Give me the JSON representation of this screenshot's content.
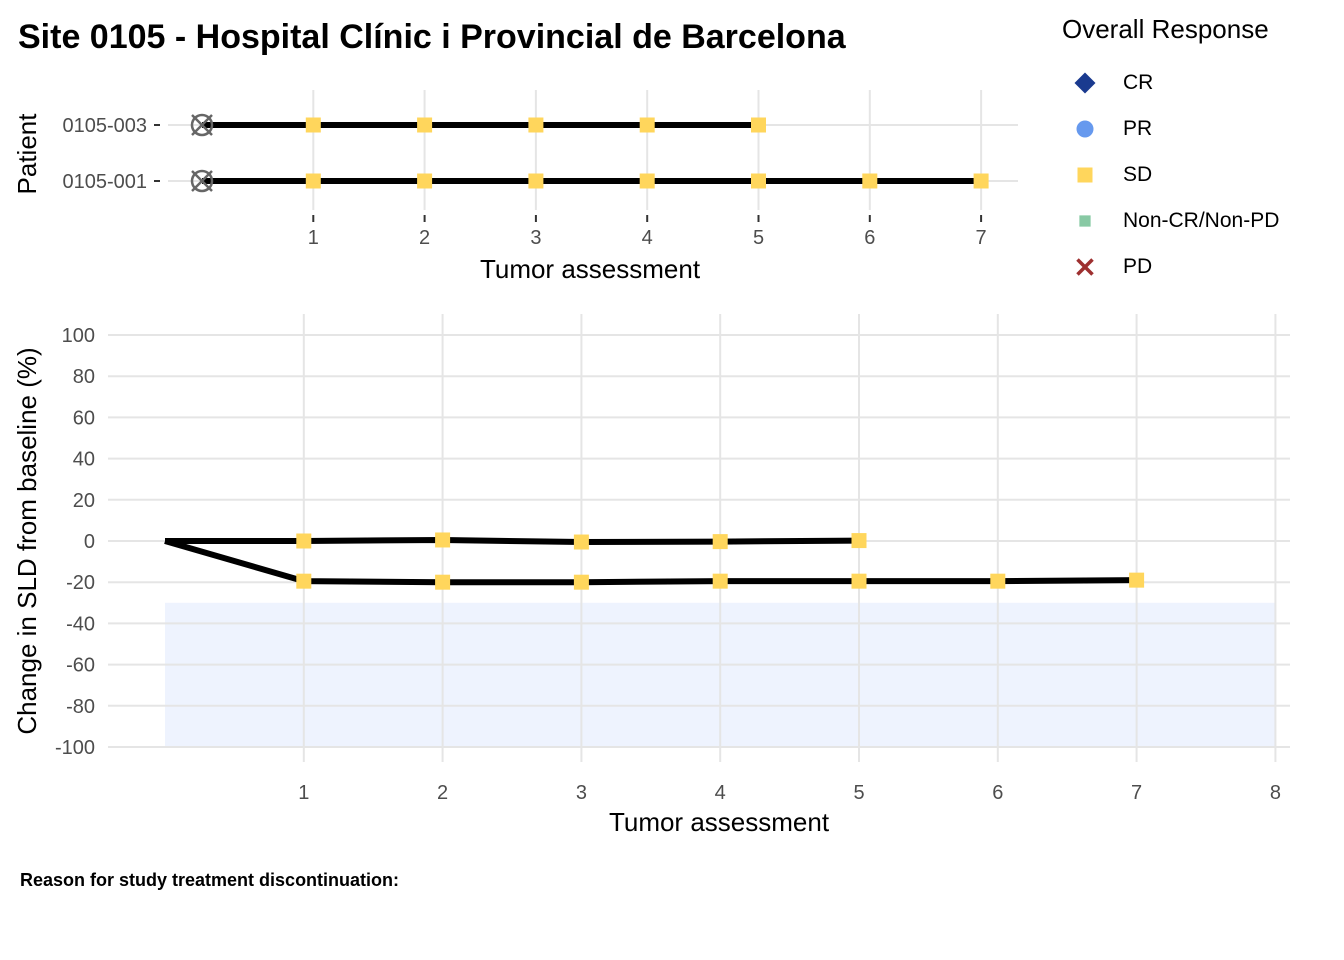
{
  "title": "Site 0105 - Hospital Clínic i Provincial de Barcelona",
  "footnote": "Reason for study treatment discontinuation:",
  "legend": {
    "title": "Overall Response",
    "items": [
      {
        "label": "CR",
        "shape": "diamond",
        "color": "#1A3A8F"
      },
      {
        "label": "PR",
        "shape": "circle",
        "color": "#6699EE"
      },
      {
        "label": "SD",
        "shape": "square",
        "color": "#FFD65C"
      },
      {
        "label": "Non-CR/Non-PD",
        "shape": "square-small",
        "color": "#88C9A4"
      },
      {
        "label": "PD",
        "shape": "cross",
        "color": "#9E3030"
      }
    ]
  },
  "chart_data": [
    {
      "type": "line",
      "name": "swimmer",
      "xlabel": "Tumor assessment",
      "ylabel": "Patient",
      "x_ticks": [
        1,
        2,
        3,
        4,
        5,
        6,
        7
      ],
      "xlim": [
        0,
        7.35
      ],
      "y_categories": [
        "0105-003",
        "0105-001"
      ],
      "grid": true,
      "baseline_marker": "circle-x",
      "baseline_color": "#666666",
      "line_color": "#000000",
      "series": [
        {
          "patient": "0105-003",
          "assessments": [
            1,
            2,
            3,
            4,
            5
          ],
          "response": [
            "SD",
            "SD",
            "SD",
            "SD",
            "SD"
          ]
        },
        {
          "patient": "0105-001",
          "assessments": [
            1,
            2,
            3,
            4,
            5,
            6,
            7
          ],
          "response": [
            "SD",
            "SD",
            "SD",
            "SD",
            "SD",
            "SD",
            "SD"
          ]
        }
      ]
    },
    {
      "type": "line",
      "name": "spider",
      "xlabel": "Tumor assessment",
      "ylabel": "Change in SLD from baseline (%)",
      "x_ticks": [
        1,
        2,
        3,
        4,
        5,
        6,
        7,
        8
      ],
      "y_ticks": [
        100,
        80,
        60,
        40,
        20,
        0,
        -20,
        -40,
        -60,
        -80,
        -100
      ],
      "xlim": [
        -0.9,
        8.2
      ],
      "ylim": [
        -105,
        110
      ],
      "grid": true,
      "response_band": {
        "from": -100,
        "to": -30,
        "color": "#EEF3FE"
      },
      "line_color": "#000000",
      "series": [
        {
          "patient": "0105-003",
          "x": [
            0,
            1,
            2,
            3,
            4,
            5
          ],
          "y": [
            0,
            0,
            0.5,
            -0.5,
            -0.3,
            0.2
          ],
          "response": [
            "",
            "SD",
            "SD",
            "SD",
            "SD",
            "SD"
          ]
        },
        {
          "patient": "0105-001",
          "x": [
            0,
            1,
            2,
            3,
            4,
            5,
            6,
            7
          ],
          "y": [
            0,
            -19.5,
            -20,
            -20,
            -19.5,
            -19.5,
            -19.5,
            -19
          ],
          "response": [
            "",
            "SD",
            "SD",
            "SD",
            "SD",
            "SD",
            "SD",
            "SD"
          ]
        }
      ]
    }
  ]
}
